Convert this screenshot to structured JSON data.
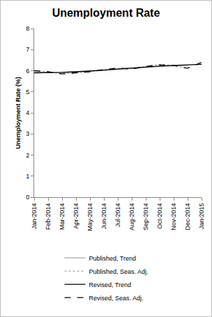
{
  "chart_data": {
    "type": "line",
    "title": "Unemployment Rate",
    "y_label": "Unemployment Rate (%)",
    "categories": [
      "Jan-2014",
      "Feb-2014",
      "Mar-2014",
      "Apr-2014",
      "May-2014",
      "Jun-2014",
      "Jul-2014",
      "Aug-2014",
      "Sep-2014",
      "Oct-2014",
      "Nov-2014",
      "Dec-2014",
      "Jan-2015"
    ],
    "series": [
      {
        "name": "Published, Trend",
        "color": "#a6a6a6",
        "line_style": "solid",
        "values": [
          5.9,
          5.9,
          5.92,
          5.95,
          5.97,
          6.02,
          6.07,
          6.12,
          6.17,
          6.2,
          6.23,
          6.25,
          null
        ]
      },
      {
        "name": "Published, Seas. Adj.",
        "color": "#a6a6a6",
        "line_style": "dot",
        "values": [
          6.0,
          5.95,
          5.85,
          5.9,
          5.95,
          6.05,
          6.1,
          6.1,
          6.2,
          6.3,
          6.25,
          6.1,
          null
        ]
      },
      {
        "name": "Revised, Trend",
        "color": "#000000",
        "line_style": "solid",
        "values": [
          5.9,
          5.9,
          5.92,
          5.95,
          5.98,
          6.03,
          6.08,
          6.13,
          6.18,
          6.22,
          6.25,
          6.27,
          6.3
        ]
      },
      {
        "name": "Revised, Seas. Adj.",
        "color": "#000000",
        "line_style": "dash",
        "values": [
          6.0,
          5.95,
          5.85,
          5.9,
          5.95,
          6.05,
          6.12,
          6.08,
          6.2,
          6.28,
          6.25,
          6.12,
          6.4
        ]
      }
    ],
    "ylim": [
      0,
      8
    ],
    "yticks": [
      0,
      1,
      2,
      3,
      4,
      5,
      6,
      7,
      8
    ],
    "grid": false,
    "legend": "bottom"
  }
}
